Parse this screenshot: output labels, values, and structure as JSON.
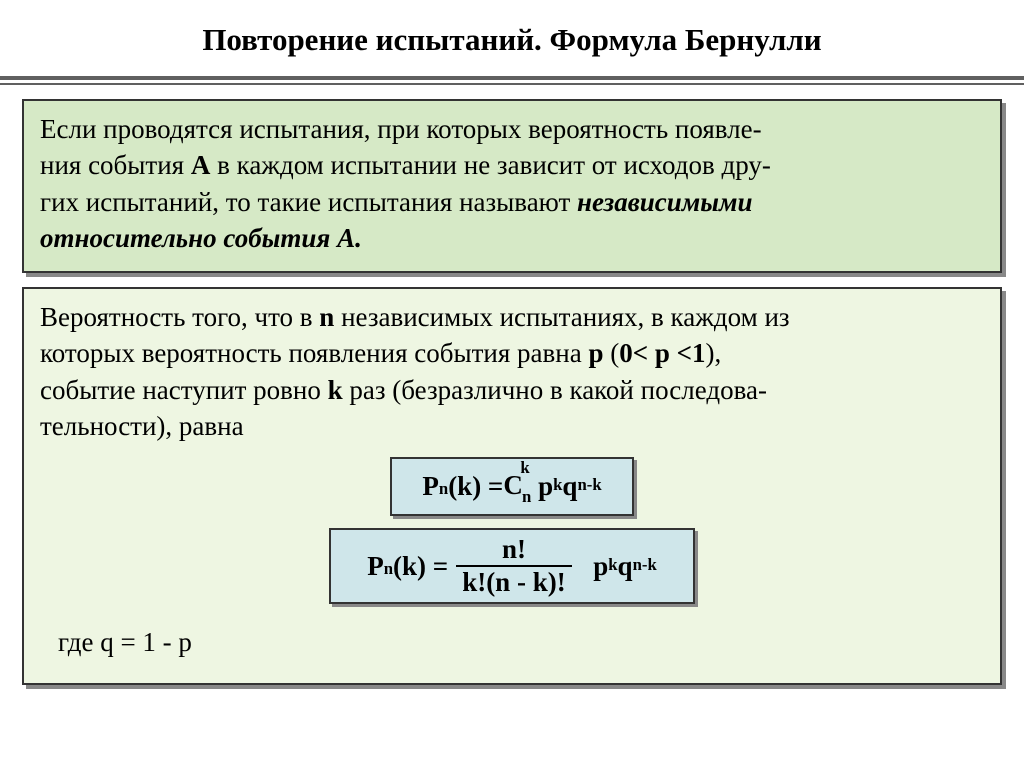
{
  "title": "Повторение испытаний. Формула Бернулли",
  "box1": {
    "line1_a": "Если проводятся испытания, при которых вероятность появле-",
    "line2_a": "ния события ",
    "line2_A": "А",
    "line2_b": " в каждом испытании не зависит от исходов дру-",
    "line3_a": "гих испытаний, то такие испытания называют ",
    "line3_em": "независимыми",
    "line4_em": "относительно события А."
  },
  "box2": {
    "line1_a": "Вероятность того, что в ",
    "line1_n": "n",
    "line1_b": " независимых испытаниях, в каждом из",
    "line2_a": "которых вероятность появления события равна ",
    "line2_p": "p",
    "line2_paren": " (",
    "line2_range": "0< p <1",
    "line2_close": "),",
    "line3_a": "событие наступит ровно ",
    "line3_k": "k",
    "line3_b": " раз (безразлично в какой последова-",
    "line4": "тельности), равна"
  },
  "formula1": {
    "lhs": "P",
    "lhs_sub": "n",
    "lhs_arg": "(k) = ",
    "C": "C",
    "C_sup": "k",
    "C_sub": "n",
    "pk": "p",
    "pk_sup": "k",
    "q": "q",
    "q_sup": "n-k"
  },
  "formula2": {
    "lhs": "P",
    "lhs_sub": "n",
    "lhs_arg": "(k) =",
    "num": "n!",
    "den": "k!(n - k)!",
    "pk": "p",
    "pk_sup": "k",
    "q": "q",
    "q_sup": "n-k"
  },
  "where": "где q = 1 - p",
  "colors": {
    "box_green_bg": "#d6e9c6",
    "box_light_bg": "#eef6e2",
    "formula_bg": "#cfe6ea",
    "border": "#333333",
    "shadow": "#888888",
    "rule": "#606060"
  }
}
